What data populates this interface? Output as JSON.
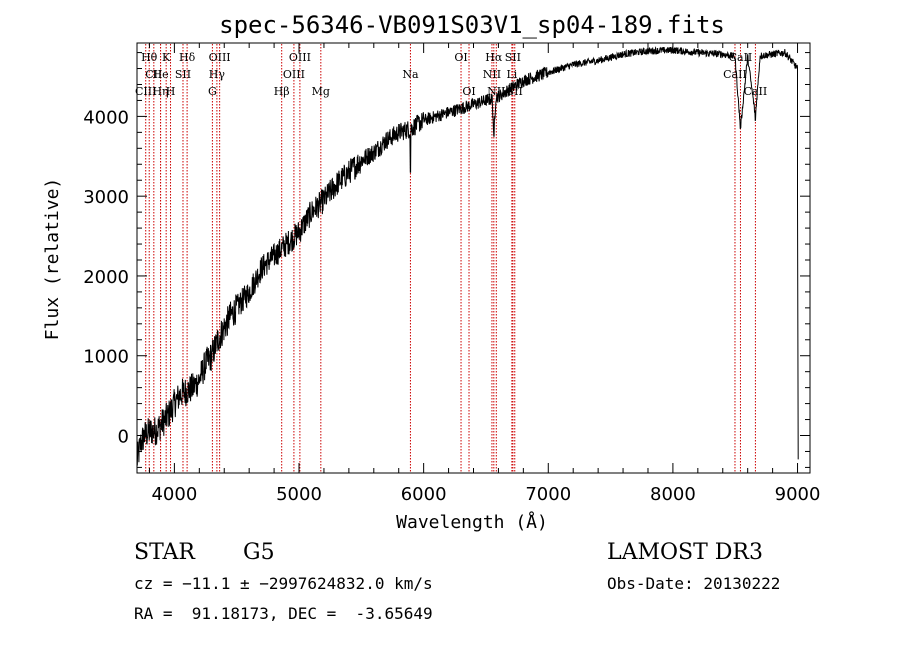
{
  "chart_data": {
    "type": "line",
    "title": "spec-56346-VB091S03V1_sp04-189.fits",
    "xlabel": "Wavelength (Å)",
    "ylabel": "Flux (relative)",
    "xlim": [
      3700,
      9100
    ],
    "ylim": [
      -470,
      4920
    ],
    "x_ticks": [
      4000,
      5000,
      6000,
      7000,
      8000,
      9000
    ],
    "y_ticks": [
      0,
      1000,
      2000,
      3000,
      4000
    ],
    "grid": false,
    "series": [
      {
        "name": "flux",
        "x": [
          3700,
          3730,
          3760,
          3800,
          3850,
          3900,
          3950,
          4000,
          4050,
          4100,
          4150,
          4200,
          4250,
          4300,
          4350,
          4400,
          4450,
          4500,
          4600,
          4700,
          4800,
          4900,
          5000,
          5100,
          5200,
          5300,
          5400,
          5500,
          5600,
          5700,
          5800,
          5900,
          6000,
          6100,
          6200,
          6300,
          6400,
          6500,
          6550,
          6563,
          6580,
          6600,
          6700,
          6800,
          6900,
          7000,
          7200,
          7400,
          7600,
          7800,
          8000,
          8200,
          8400,
          8498,
          8542,
          8600,
          8662,
          8700,
          8800,
          8900,
          9000
        ],
        "y": [
          -320,
          -100,
          0,
          50,
          60,
          150,
          250,
          400,
          520,
          560,
          600,
          700,
          900,
          1000,
          1200,
          1350,
          1500,
          1600,
          1800,
          2100,
          2250,
          2400,
          2550,
          2800,
          2950,
          3150,
          3300,
          3450,
          3550,
          3700,
          3800,
          3850,
          3950,
          4000,
          4050,
          4100,
          4150,
          4200,
          4220,
          3800,
          4250,
          4250,
          4350,
          4450,
          4500,
          4550,
          4650,
          4700,
          4780,
          4820,
          4830,
          4800,
          4780,
          4750,
          3850,
          4750,
          4000,
          4760,
          4780,
          4800,
          4600
        ]
      }
    ],
    "lines": [
      {
        "label": "Hθ",
        "wl": 3798,
        "row": 0
      },
      {
        "label": "CII",
        "wl": 3835,
        "row": 1
      },
      {
        "label": "CIII",
        "wl": 3770,
        "row": 2
      },
      {
        "label": "K",
        "wl": 3934,
        "row": 0
      },
      {
        "label": "He",
        "wl": 3889,
        "row": 1
      },
      {
        "label": "Hη",
        "wl": 3889,
        "row": 2
      },
      {
        "label": "Hδ",
        "wl": 4102,
        "row": 0
      },
      {
        "label": "SII",
        "wl": 4069,
        "row": 1
      },
      {
        "label": "H",
        "wl": 3969,
        "row": 2
      },
      {
        "label": "OIII",
        "wl": 4363,
        "row": 0
      },
      {
        "label": "Hγ",
        "wl": 4341,
        "row": 1
      },
      {
        "label": "G",
        "wl": 4305,
        "row": 2
      },
      {
        "label": "Hβ",
        "wl": 4861,
        "row": 2
      },
      {
        "label": "OIII",
        "wl": 5007,
        "row": 0
      },
      {
        "label": "OIII",
        "wl": 4959,
        "row": 1
      },
      {
        "label": "Mg",
        "wl": 5175,
        "row": 2
      },
      {
        "label": "Na",
        "wl": 5894,
        "row": 1
      },
      {
        "label": "OI",
        "wl": 6300,
        "row": 0
      },
      {
        "label": "OI",
        "wl": 6364,
        "row": 2
      },
      {
        "label": "Hα",
        "wl": 6563,
        "row": 0
      },
      {
        "label": "SII",
        "wl": 6716,
        "row": 0
      },
      {
        "label": "NII",
        "wl": 6548,
        "row": 1
      },
      {
        "label": "Li",
        "wl": 6708,
        "row": 1
      },
      {
        "label": "NII",
        "wl": 6583,
        "row": 2
      },
      {
        "label": "SII",
        "wl": 6731,
        "row": 2
      },
      {
        "label": "CaII",
        "wl": 8542,
        "row": 0
      },
      {
        "label": "CaII",
        "wl": 8498,
        "row": 1
      },
      {
        "label": "CaII",
        "wl": 8662,
        "row": 2
      }
    ]
  },
  "info": {
    "class_label": "STAR",
    "subclass": "G5",
    "survey": "LAMOST DR3",
    "cz": "cz = −11.1 ± −2997624832.0 km/s",
    "obs_date": "Obs-Date: 20130222",
    "radec": "RA =  91.18173, DEC =  -3.65649"
  },
  "colors": {
    "axis": "#000000",
    "spectrum": "#000000",
    "line_marker": "#cc0000"
  }
}
